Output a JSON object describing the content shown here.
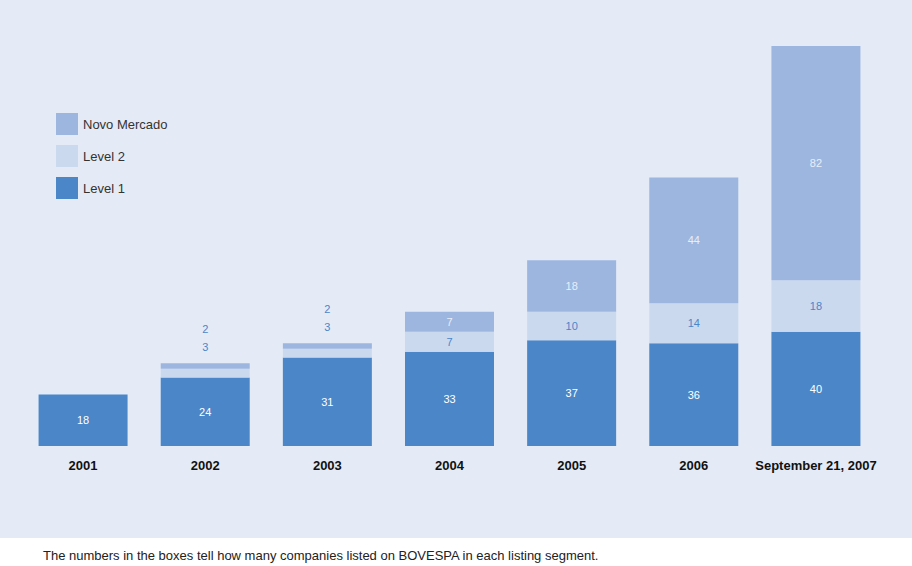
{
  "chart_data": {
    "type": "bar",
    "categories": [
      "2001",
      "2002",
      "2003",
      "2004",
      "2005",
      "2006",
      "September 21, 2007"
    ],
    "series": [
      {
        "name": "Level 1",
        "color": "#4a86c8",
        "values": [
          18,
          24,
          31,
          33,
          37,
          36,
          40
        ]
      },
      {
        "name": "Level 2",
        "color": "#cbd9ef",
        "values": [
          null,
          3,
          3,
          7,
          10,
          14,
          18
        ]
      },
      {
        "name": "Novo Mercado",
        "color": "#9cb6df",
        "values": [
          null,
          2,
          2,
          7,
          18,
          44,
          82
        ]
      }
    ],
    "ylim": [
      0,
      140
    ],
    "stacked": true,
    "data_labels": true,
    "tick_labels": "x",
    "grid": false,
    "legend": "top-left",
    "annotation": "The numbers in the boxes tell how many companies listed on BOVESPA in each listing segment."
  }
}
